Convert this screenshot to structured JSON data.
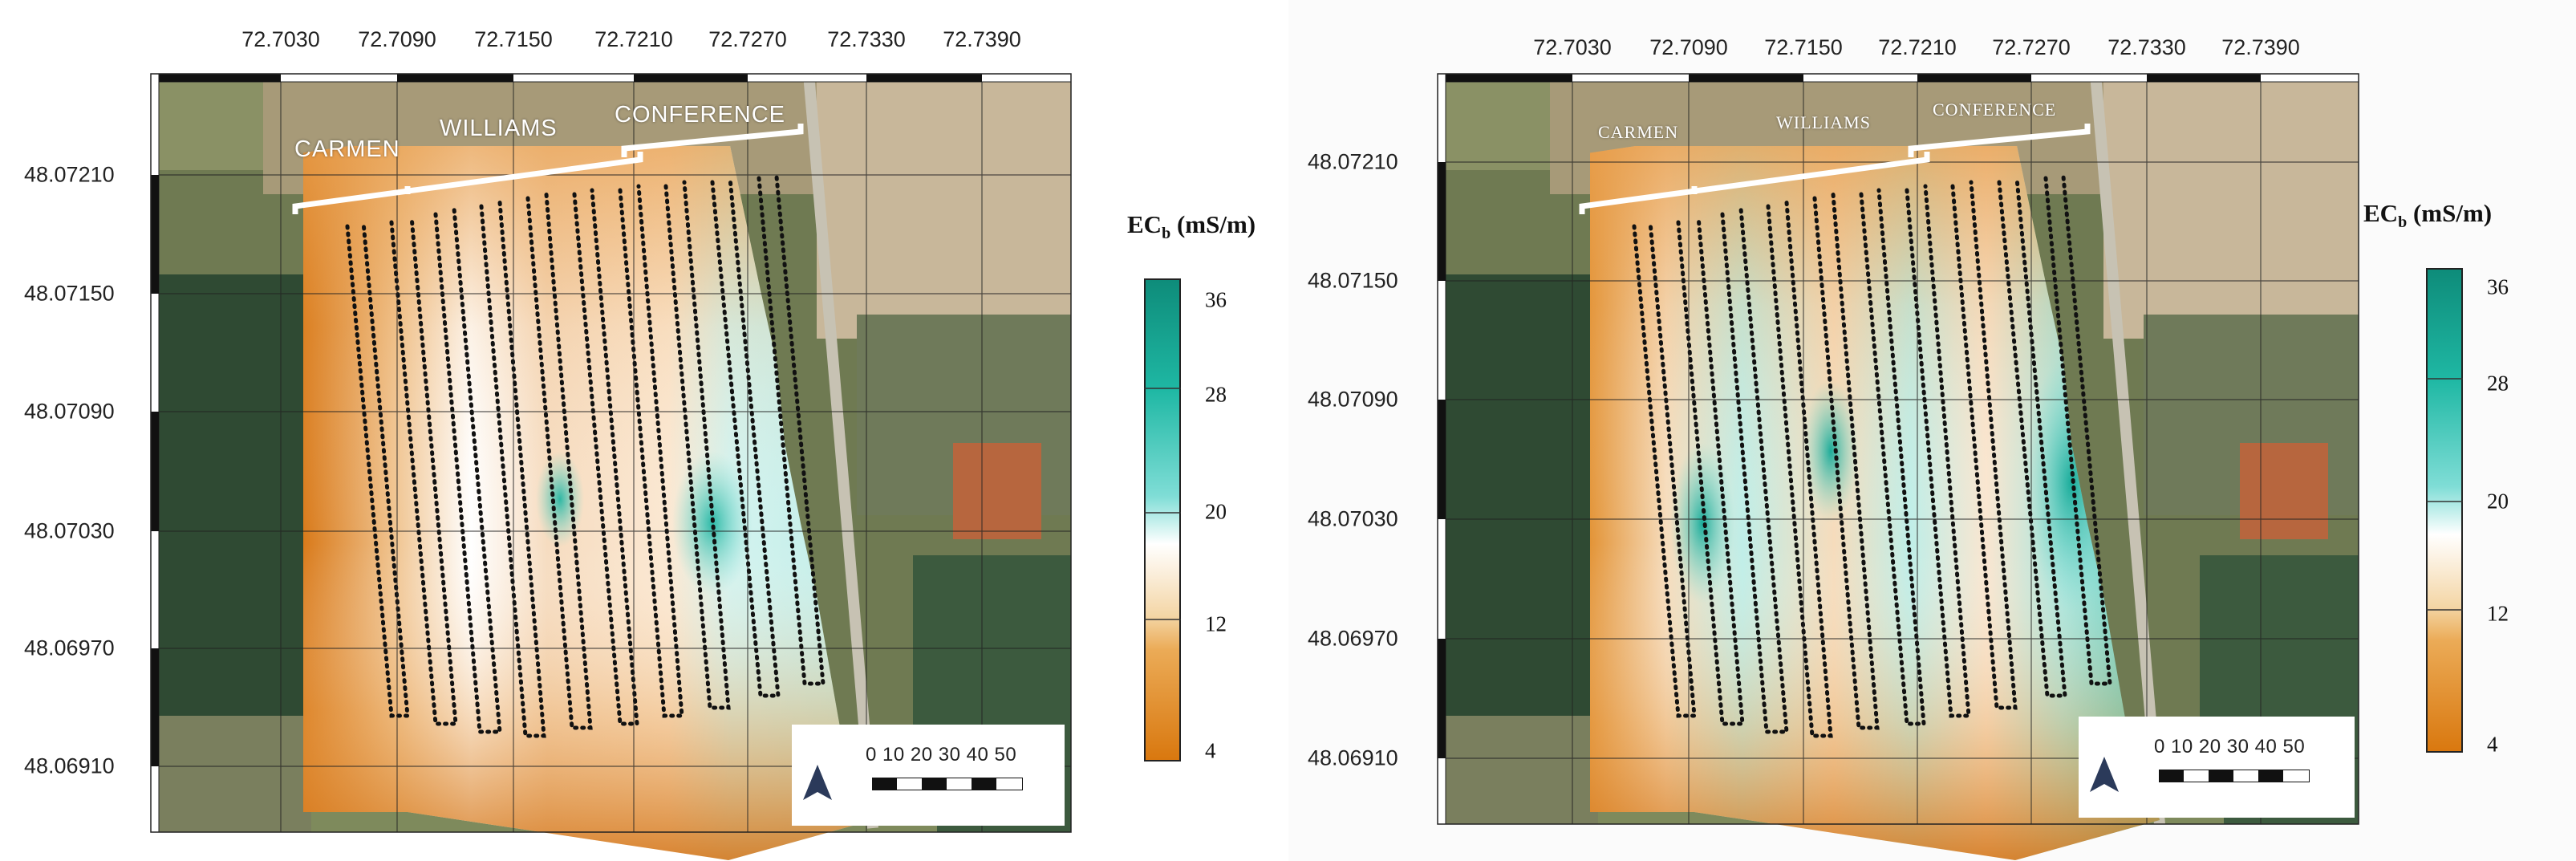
{
  "maps": [
    {
      "id": "left",
      "lon_ticks": [
        "72.7030",
        "72.7090",
        "72.7150",
        "72.7210",
        "72.7270",
        "72.7330",
        "72.7390"
      ],
      "lat_ticks": [
        "48.07210",
        "48.07150",
        "48.07090",
        "48.07030",
        "48.06970",
        "48.06910"
      ],
      "field_labels": [
        "CARMEN",
        "WILLIAMS",
        "CONFERENCE"
      ],
      "legend": {
        "title_main": "EC",
        "title_sub": "b",
        "title_unit": " (mS/m)",
        "ticks": [
          "36",
          "28",
          "20",
          "12",
          "4"
        ]
      },
      "scale_bar": "0  10 20 30 40 50",
      "north_arrow": "north-arrow-icon"
    },
    {
      "id": "right",
      "lon_ticks": [
        "72.7030",
        "72.7090",
        "72.7150",
        "72.7210",
        "72.7270",
        "72.7330",
        "72.7390"
      ],
      "lat_ticks": [
        "48.07210",
        "48.07150",
        "48.07090",
        "48.07030",
        "48.06970",
        "48.06910"
      ],
      "field_labels": [
        "CARMEN",
        "WILLIAMS",
        "CONFERENCE"
      ],
      "legend": {
        "title_main": "EC",
        "title_sub": "b",
        "title_unit": " (mS/m)",
        "ticks": [
          "36",
          "28",
          "20",
          "12",
          "4"
        ]
      },
      "scale_bar": "0  10 20 30 40 50",
      "north_arrow": "north-arrow-icon"
    }
  ],
  "colors": {
    "ec_high": "#0e8c7a",
    "ec_mid": "#ffffff",
    "ec_low": "#d9780f"
  }
}
